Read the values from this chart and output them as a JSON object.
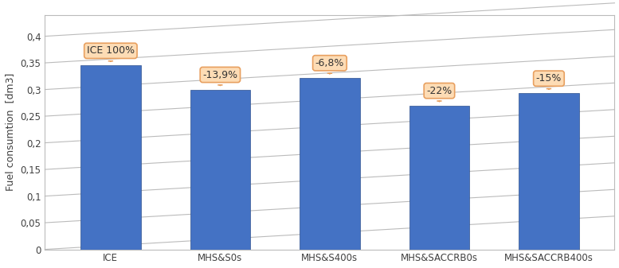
{
  "categories": [
    "ICE",
    "MHS&S0s",
    "MHS&S400s",
    "MHS&SACCRB0s",
    "MHS&SACCRB400s"
  ],
  "values": [
    0.345,
    0.3,
    0.322,
    0.27,
    0.293
  ],
  "labels": [
    "ICE 100%",
    "-13,9%",
    "-6,8%",
    "-22%",
    "-15%"
  ],
  "bar_color": "#4472C4",
  "bar_edge_color": "#2F528F",
  "ylabel": "Fuel consumtion  [dm3]",
  "yticks": [
    0,
    0.05,
    0.1,
    0.15,
    0.2,
    0.25,
    0.3,
    0.35,
    0.4
  ],
  "ytick_labels": [
    "0",
    "0,05",
    "0,1",
    "0,15",
    "0,2",
    "0,25",
    "0,3",
    "0,35",
    "0,4"
  ],
  "ylim": [
    0,
    0.44
  ],
  "grid_color": "#BBBBBB",
  "bg_color": "#FFFFFF",
  "annotation_box_facecolor": "#FDDCB5",
  "annotation_box_edgecolor": "#E8A060",
  "annotation_fontsize": 9,
  "xlabel_fontsize": 8.5,
  "ylabel_fontsize": 9,
  "tick_fontsize": 8.5,
  "tick_color": "#404040",
  "ylabel_color": "#404040"
}
